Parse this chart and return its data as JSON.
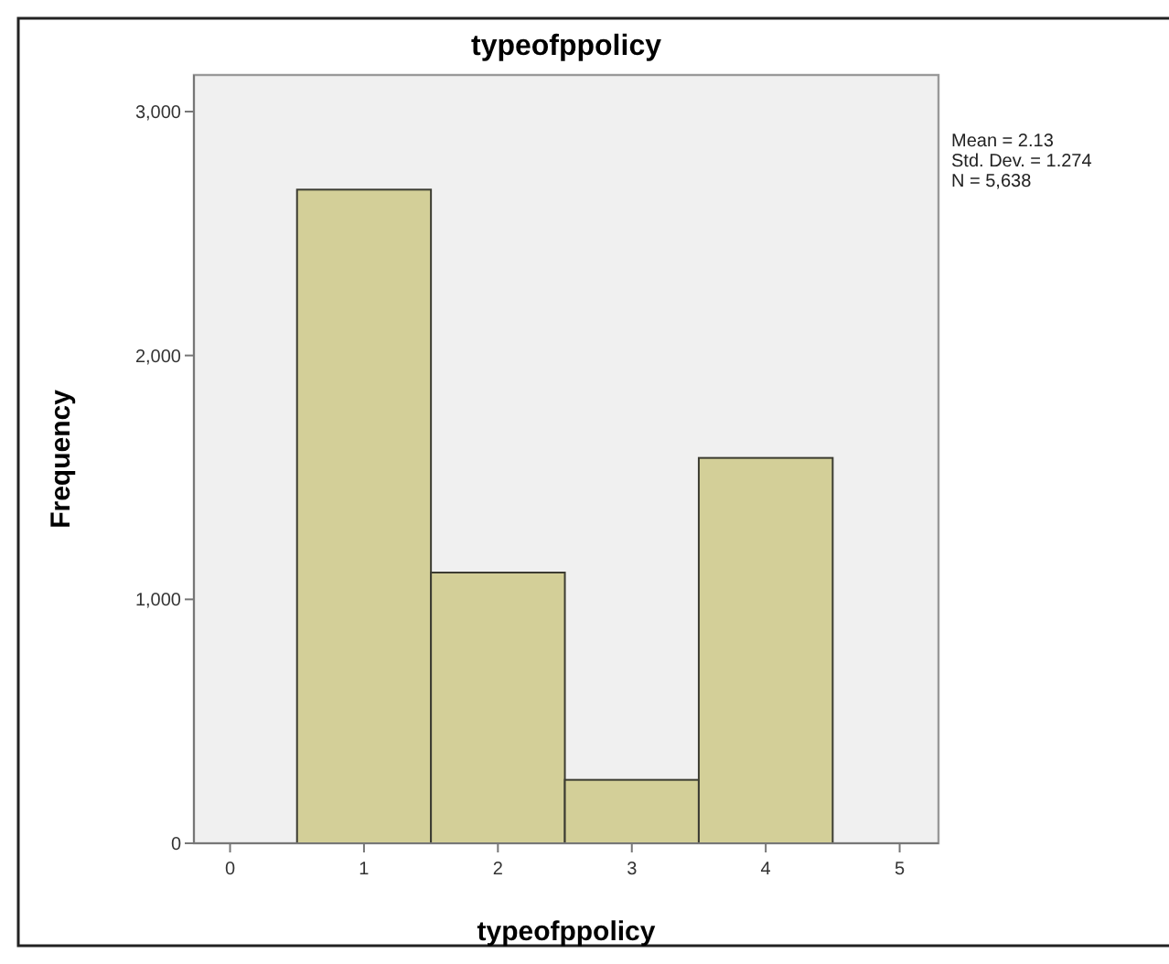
{
  "chart_data": {
    "type": "histogram",
    "title": "typeofppolicy",
    "xlabel": "typeofppolicy",
    "ylabel": "Frequency",
    "bins": [
      0.5,
      1.5,
      2.5,
      3.5,
      4.5
    ],
    "values": [
      2680,
      1110,
      260,
      1580
    ],
    "color": "#d3cf98",
    "xlim": [
      -0.27,
      5.29
    ],
    "xticks": [
      0,
      1,
      2,
      3,
      4,
      5
    ],
    "ylim": [
      0,
      3150
    ],
    "yticks": [
      {
        "value": 0,
        "label": "0"
      },
      {
        "value": 1000,
        "label": "1,000"
      },
      {
        "value": 2000,
        "label": "2,000"
      },
      {
        "value": 3000,
        "label": "3,000"
      }
    ],
    "annotations": [
      "Mean = 2.13",
      "Std. Dev. = 1.274",
      "N = 5,638"
    ]
  }
}
